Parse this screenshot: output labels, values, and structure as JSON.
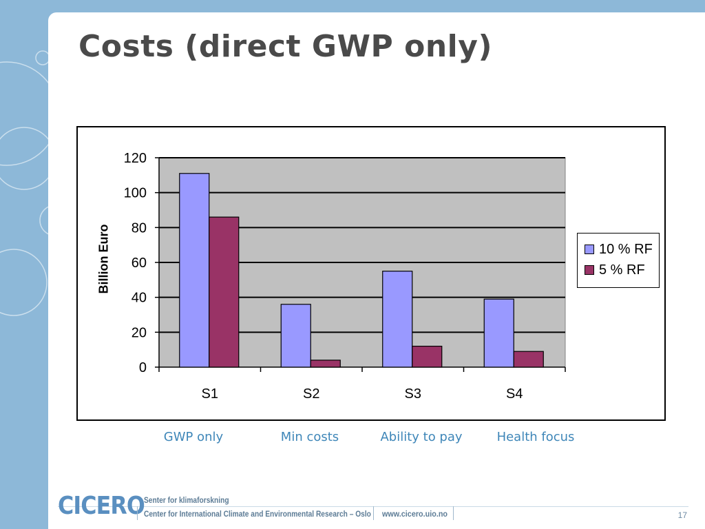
{
  "slide": {
    "title": "Costs (direct GWP only)",
    "scenario_labels": [
      "GWP only",
      "Min costs",
      "Ability to pay",
      "Health focus"
    ],
    "page_number": "17"
  },
  "footer": {
    "logo": "CICERO",
    "line1": "Senter for klimaforskning",
    "line2": "Center for International Climate and Environmental Research – Oslo",
    "url": "www.cicero.uio.no"
  },
  "chart_data": {
    "type": "bar",
    "categories": [
      "S1",
      "S2",
      "S3",
      "S4"
    ],
    "series": [
      {
        "name": "10 % RF",
        "values": [
          111,
          36,
          55,
          39
        ],
        "color": "#9999ff"
      },
      {
        "name": "5 % RF",
        "values": [
          86,
          4,
          12,
          9
        ],
        "color": "#993366"
      }
    ],
    "title": "",
    "xlabel": "",
    "ylabel": "Billion Euro",
    "ylim": [
      0,
      120
    ],
    "yticks": [
      0,
      20,
      40,
      60,
      80,
      100,
      120
    ],
    "grid": true,
    "plot_background": "#c0c0c0",
    "legend_position": "right"
  }
}
